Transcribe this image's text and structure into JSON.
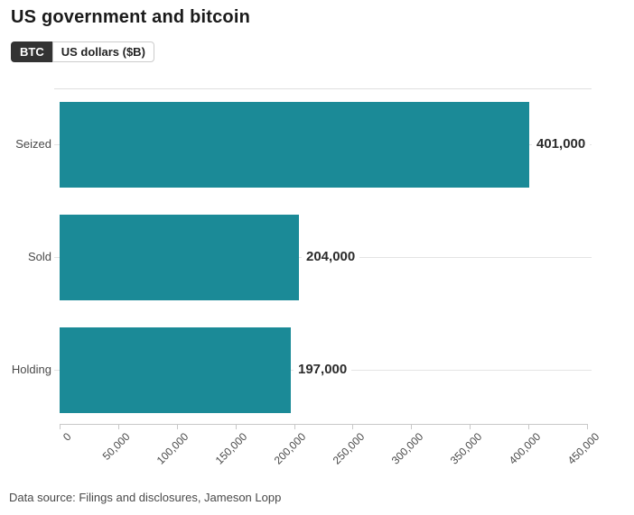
{
  "header": {
    "title": "US government and bitcoin"
  },
  "tabs": [
    {
      "label": "BTC",
      "active": true
    },
    {
      "label": "US dollars ($B)",
      "active": false
    }
  ],
  "chart_data": {
    "type": "bar",
    "orientation": "horizontal",
    "title": "US government and bitcoin",
    "categories": [
      "Seized",
      "Sold",
      "Holding"
    ],
    "values": [
      401000,
      204000,
      197000
    ],
    "value_labels": [
      "401,000",
      "204,000",
      "197,000"
    ],
    "x_ticks": [
      0,
      50000,
      100000,
      150000,
      200000,
      250000,
      300000,
      350000,
      400000,
      450000
    ],
    "x_tick_labels": [
      "0",
      "50,000",
      "100,000",
      "150,000",
      "200,000",
      "250,000",
      "300,000",
      "350,000",
      "400,000",
      "450,000"
    ],
    "xlim": [
      0,
      450000
    ],
    "bar_color": "#1b8a97",
    "grid": "horizontal category gridlines only",
    "legend_position": "none",
    "xlabel": "",
    "ylabel": ""
  },
  "footer": {
    "source": "Data source: Filings and disclosures, Jameson Lopp"
  }
}
